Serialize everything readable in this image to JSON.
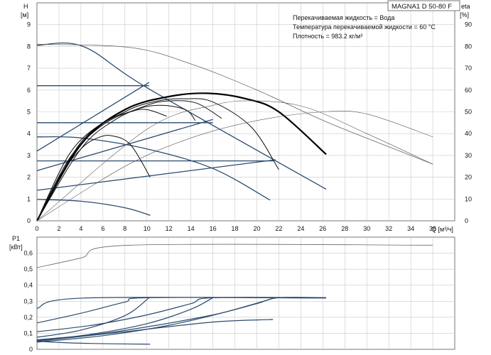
{
  "chart_data": [
    {
      "type": "line",
      "panel": "pump-curves",
      "title": "MAGNA1 D 50-80 F",
      "notes": [
        "Перекачиваемая жидкость = Вода",
        "Температура перекачиваемой жидкости = 60 °C",
        "Плотность = 983.2 кг/м³"
      ],
      "ylabel_left": "H",
      "ylabel_left_unit": "[м]",
      "ylabel_right": "eta",
      "ylabel_right_unit": "[%]",
      "xlabel": "Q [м³/ч]",
      "xlim": [
        0,
        38
      ],
      "ylim_left": [
        0,
        10
      ],
      "ylim_right": [
        0,
        100
      ],
      "x_ticks": [
        "0",
        "2",
        "4",
        "6",
        "8",
        "10",
        "12",
        "14",
        "16",
        "18",
        "20",
        "22",
        "24",
        "26",
        "28",
        "30",
        "32",
        "34",
        "36"
      ],
      "y_ticks_left": [
        "0",
        "1",
        "2",
        "3",
        "4",
        "5",
        "6",
        "7",
        "8",
        "9"
      ],
      "y_ticks_right": [
        "0",
        "10",
        "20",
        "30",
        "40",
        "50",
        "60",
        "70",
        "80",
        "90"
      ],
      "grid": true,
      "series": [
        {
          "axis": "left",
          "style": "head",
          "x": [
            0,
            4.2,
            10.2,
            26.3
          ],
          "y": [
            8.05,
            8.0,
            6.05,
            1.45
          ]
        },
        {
          "axis": "left",
          "style": "head",
          "x": [
            0,
            10.2
          ],
          "y": [
            6.2,
            6.2
          ]
        },
        {
          "axis": "left",
          "style": "head",
          "x": [
            0,
            16
          ],
          "y": [
            4.5,
            4.5
          ]
        },
        {
          "axis": "left",
          "style": "head",
          "x": [
            0,
            21.5
          ],
          "y": [
            2.75,
            2.75
          ]
        },
        {
          "axis": "left",
          "style": "head",
          "x": [
            0,
            4,
            10,
            16,
            21.2
          ],
          "y": [
            3.85,
            3.8,
            3.3,
            2.4,
            0.95
          ]
        },
        {
          "axis": "left",
          "style": "head",
          "x": [
            0,
            4,
            8,
            10.3
          ],
          "y": [
            0.98,
            0.9,
            0.6,
            0.25
          ]
        },
        {
          "axis": "left",
          "style": "system",
          "x": [
            0,
            10.2
          ],
          "y": [
            3.2,
            6.35
          ]
        },
        {
          "axis": "left",
          "style": "system",
          "x": [
            0,
            16
          ],
          "y": [
            2.3,
            4.65
          ]
        },
        {
          "axis": "left",
          "style": "system",
          "x": [
            0,
            21.7
          ],
          "y": [
            1.4,
            2.8
          ]
        },
        {
          "axis": "left",
          "style": "envelope",
          "x": [
            0,
            8.5,
            14,
            20,
            26.5,
            33,
            36
          ],
          "y": [
            8.1,
            7.95,
            7.2,
            6.0,
            4.5,
            3.2,
            2.6
          ]
        },
        {
          "axis": "right",
          "style": "eta-bold",
          "x": [
            0,
            4,
            8,
            12,
            15.5,
            19,
            22,
            26.3
          ],
          "y": [
            0,
            35,
            51,
            57,
            58.5,
            56,
            50,
            30.5
          ]
        },
        {
          "axis": "right",
          "style": "eta",
          "x": [
            0,
            4,
            8,
            11,
            13.5,
            16,
            19.5,
            22
          ],
          "y": [
            0,
            36,
            50,
            55,
            56,
            54.5,
            43,
            23.5
          ]
        },
        {
          "axis": "right",
          "style": "eta",
          "x": [
            0,
            4,
            7,
            10,
            12,
            14.5,
            16.8
          ],
          "y": [
            0,
            33,
            46,
            53,
            55,
            54,
            47
          ]
        },
        {
          "axis": "right",
          "style": "eta",
          "x": [
            0,
            3,
            6,
            9,
            11.2,
            13.5,
            14.4
          ],
          "y": [
            0,
            29,
            44,
            51,
            53,
            51,
            46
          ]
        },
        {
          "axis": "right",
          "style": "eta",
          "x": [
            0,
            3,
            6,
            8.5,
            10,
            11.8
          ],
          "y": [
            0,
            31,
            45,
            50,
            51,
            48
          ]
        },
        {
          "axis": "right",
          "style": "eta",
          "x": [
            0,
            2,
            4,
            5.5,
            6.8,
            8.5,
            10.3
          ],
          "y": [
            0,
            20,
            33,
            38,
            39,
            35,
            20
          ]
        },
        {
          "axis": "right",
          "style": "eta-thin",
          "x": [
            0,
            8,
            14,
            20,
            26,
            30,
            36
          ],
          "y": [
            0,
            25,
            38,
            46,
            50,
            49,
            38.5
          ]
        },
        {
          "axis": "right",
          "style": "eta-thin",
          "x": [
            0,
            10,
            16,
            20,
            24.5,
            30,
            36
          ],
          "y": [
            0,
            42,
            53,
            55,
            52,
            40,
            26
          ]
        }
      ]
    },
    {
      "type": "line",
      "panel": "power-curves",
      "ylabel": "P1",
      "ylabel_unit": "[кВт]",
      "xlim": [
        0,
        38
      ],
      "ylim": [
        0,
        0.7
      ],
      "y_ticks": [
        "0",
        "0,1",
        "0,2",
        "0,3",
        "0,4",
        "0,5",
        "0,6"
      ],
      "grid": true,
      "series": [
        {
          "style": "envelope",
          "x": [
            0,
            4,
            8.5,
            36
          ],
          "y": [
            0.51,
            0.57,
            0.65,
            0.65
          ]
        },
        {
          "style": "curve",
          "x": [
            0,
            4.2,
            26.3
          ],
          "y": [
            0.255,
            0.32,
            0.32
          ]
        },
        {
          "style": "curve",
          "x": [
            0,
            4,
            8,
            10.2,
            26.3
          ],
          "y": [
            0.165,
            0.225,
            0.295,
            0.322,
            0.322
          ]
        },
        {
          "style": "curve",
          "x": [
            0,
            5,
            10,
            14,
            16,
            26.3
          ],
          "y": [
            0.11,
            0.15,
            0.215,
            0.285,
            0.322,
            0.322
          ]
        },
        {
          "style": "curve",
          "x": [
            0,
            5,
            10,
            16,
            20,
            22,
            26.3
          ],
          "y": [
            0.06,
            0.09,
            0.14,
            0.215,
            0.285,
            0.322,
            0.322
          ]
        },
        {
          "style": "curve",
          "x": [
            0,
            4,
            8,
            10.2
          ],
          "y": [
            0.075,
            0.12,
            0.21,
            0.322
          ]
        },
        {
          "style": "curve",
          "x": [
            0,
            5,
            10,
            14,
            16
          ],
          "y": [
            0.055,
            0.095,
            0.16,
            0.25,
            0.322
          ]
        },
        {
          "style": "curve",
          "x": [
            0,
            6,
            12,
            17,
            21.7
          ],
          "y": [
            0.045,
            0.085,
            0.15,
            0.23,
            0.322
          ]
        },
        {
          "style": "curve",
          "x": [
            0,
            8,
            16,
            21,
            21.2
          ],
          "y": [
            0.05,
            0.11,
            0.17,
            0.185,
            0.185
          ]
        },
        {
          "style": "curve",
          "x": [
            0,
            4,
            10.3
          ],
          "y": [
            0.05,
            0.038,
            0.032
          ]
        }
      ]
    }
  ]
}
